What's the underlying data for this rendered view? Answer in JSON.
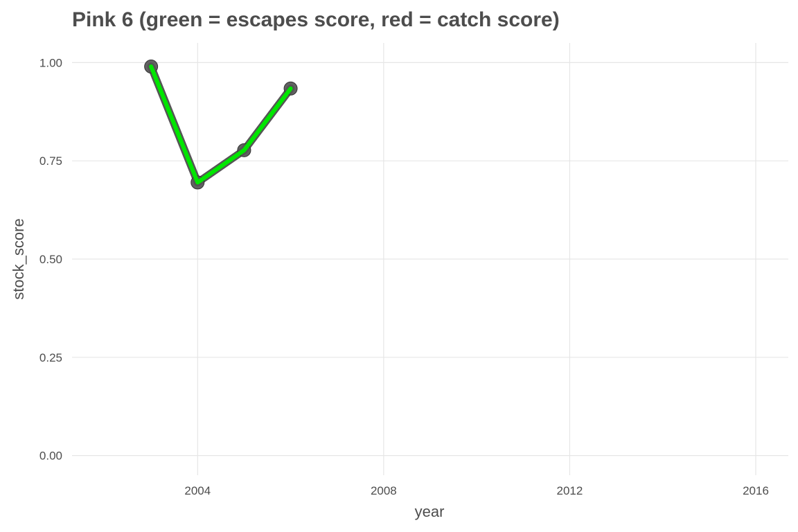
{
  "chart_data": {
    "type": "line",
    "title": "Pink 6 (green = escapes score, red = catch score)",
    "xlabel": "year",
    "ylabel": "stock_score",
    "xlim": [
      2001.3,
      2016.7
    ],
    "ylim": [
      -0.05,
      1.05
    ],
    "x_ticks": [
      2004,
      2008,
      2012,
      2016
    ],
    "x_tick_labels": [
      "2004",
      "2008",
      "2012",
      "2016"
    ],
    "y_ticks": [
      0,
      0.25,
      0.5,
      0.75,
      1.0
    ],
    "y_tick_labels": [
      "0.00",
      "0.25",
      "0.50",
      "0.75",
      "1.00"
    ],
    "grid": true,
    "series": [
      {
        "color": "#00e600",
        "outline_color": "#555555",
        "point_color": "#555555",
        "x": [
          2003,
          2004,
          2005,
          2006
        ],
        "y": [
          0.99,
          0.695,
          0.777,
          0.934
        ]
      }
    ]
  }
}
